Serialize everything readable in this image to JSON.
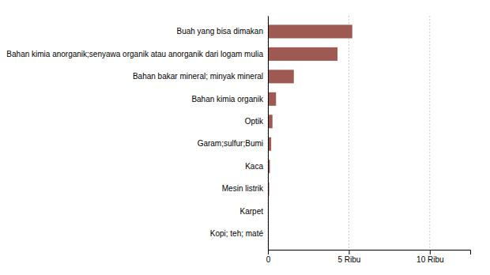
{
  "chart_data": {
    "type": "bar",
    "orientation": "horizontal",
    "categories": [
      "Kopi; teh; maté",
      "Karpet",
      "Mesin listrik",
      "Kaca",
      "Garam;sulfur;Bumi",
      "Optik",
      "Bahan kimia organik",
      "Bahan bakar mineral; minyak mineral",
      "Bahan kimia anorganik;senyawa organik atau anorganik dari logam mulia",
      "Buah yang bisa dimakan"
    ],
    "values": [
      30,
      50,
      80,
      120,
      200,
      280,
      500,
      1600,
      4300,
      5211
    ],
    "color": "#9e5a52",
    "xlim": [
      0,
      12500
    ],
    "xticks": [
      0,
      {
        "value": 5000,
        "label": "5 Ribu"
      },
      {
        "value": 10000,
        "label": "10 Ribu"
      }
    ],
    "grid": true
  }
}
